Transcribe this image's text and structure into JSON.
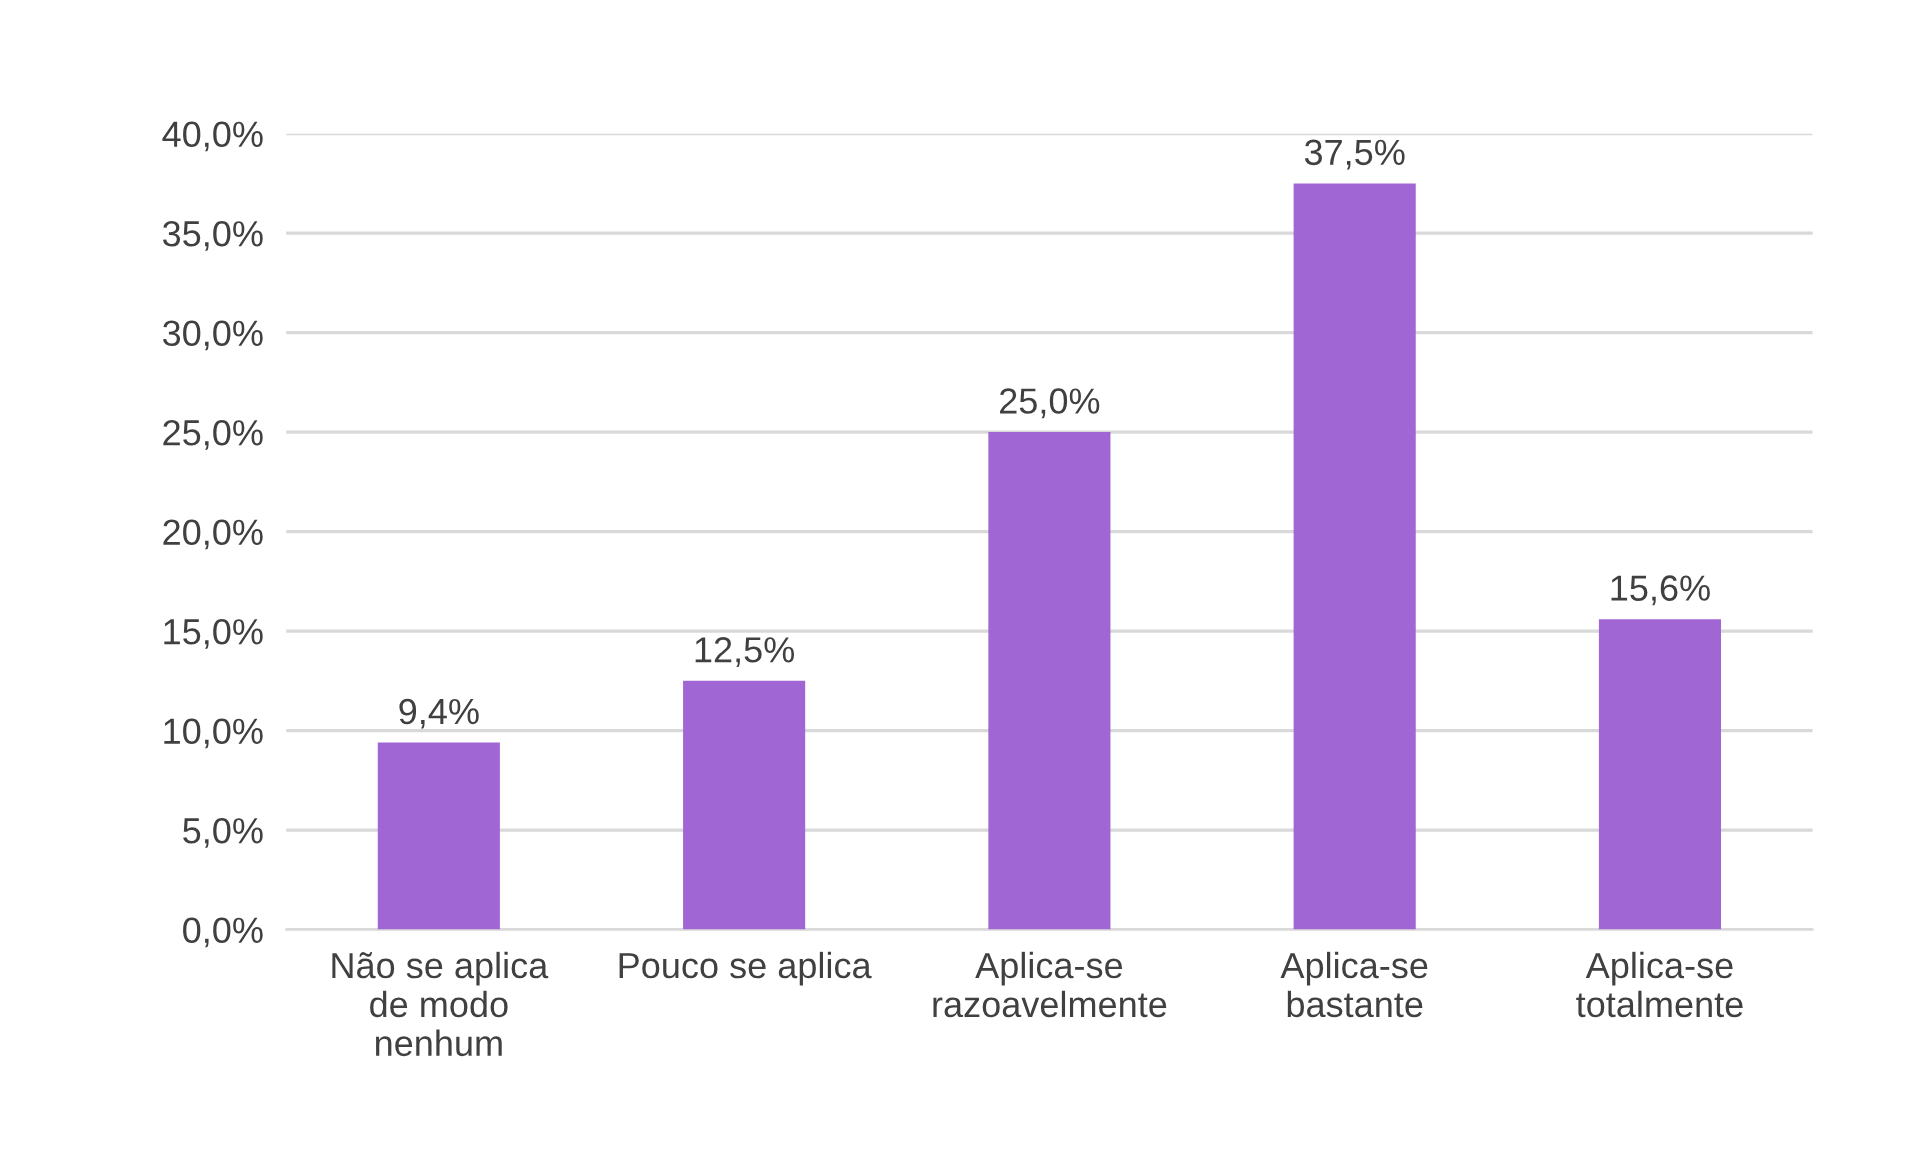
{
  "chart_data": {
    "type": "bar",
    "categories": [
      "Não se aplica\nde modo\nnenhum",
      "Pouco se aplica",
      "Aplica-se\nrazoavelmente",
      "Aplica-se\nbastante",
      "Aplica-se\ntotalmente"
    ],
    "values": [
      9.4,
      12.5,
      25.0,
      37.5,
      15.6
    ],
    "value_labels": [
      "9,4%",
      "12,5%",
      "25,0%",
      "37,5%",
      "15,6%"
    ],
    "color": "#a066d3",
    "ylim": [
      0,
      40
    ],
    "yticks": [
      {
        "value": 0,
        "label": "0,0%"
      },
      {
        "value": 5,
        "label": "5,0%"
      },
      {
        "value": 10,
        "label": "10,0%"
      },
      {
        "value": 15,
        "label": "15,0%"
      },
      {
        "value": 20,
        "label": "20,0%"
      },
      {
        "value": 25,
        "label": "25,0%"
      },
      {
        "value": 30,
        "label": "30,0%"
      },
      {
        "value": 35,
        "label": "35,0%"
      },
      {
        "value": 40,
        "label": "40,0%"
      }
    ],
    "grid": "y",
    "legend": false
  }
}
